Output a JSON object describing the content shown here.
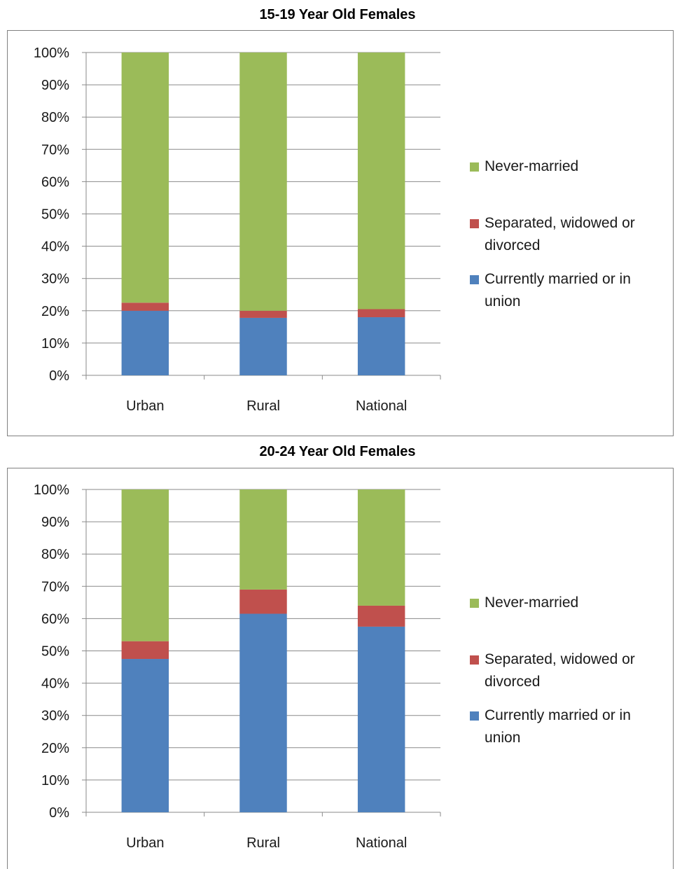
{
  "chart_data": [
    {
      "type": "bar",
      "stacked": true,
      "title": "15-19 Year Old Females",
      "categories": [
        "Urban",
        "Rural",
        "National"
      ],
      "ylim": [
        0,
        100
      ],
      "yticks": [
        "0%",
        "10%",
        "20%",
        "30%",
        "40%",
        "50%",
        "60%",
        "70%",
        "80%",
        "90%",
        "100%"
      ],
      "grid": true,
      "legend_position": "right",
      "series": [
        {
          "name": "Currently married or in union",
          "color": "#4F81BD",
          "values": [
            20,
            17.8,
            18
          ]
        },
        {
          "name": "Separated, widowed or divorced",
          "color": "#C0504D",
          "values": [
            2.5,
            2.2,
            2.5
          ]
        },
        {
          "name": "Never-married",
          "color": "#9BBB59",
          "values": [
            77.5,
            80,
            79.5
          ]
        }
      ]
    },
    {
      "type": "bar",
      "stacked": true,
      "title": "20-24 Year Old Females",
      "categories": [
        "Urban",
        "Rural",
        "National"
      ],
      "ylim": [
        0,
        100
      ],
      "yticks": [
        "0%",
        "10%",
        "20%",
        "30%",
        "40%",
        "50%",
        "60%",
        "70%",
        "80%",
        "90%",
        "100%"
      ],
      "grid": true,
      "legend_position": "right",
      "series": [
        {
          "name": "Currently married or in union",
          "color": "#4F81BD",
          "values": [
            47.5,
            61.5,
            57.5
          ]
        },
        {
          "name": "Separated, widowed or divorced",
          "color": "#C0504D",
          "values": [
            5.5,
            7.5,
            6.5
          ]
        },
        {
          "name": "Never-married",
          "color": "#9BBB59",
          "values": [
            47,
            31,
            36
          ]
        }
      ]
    }
  ]
}
